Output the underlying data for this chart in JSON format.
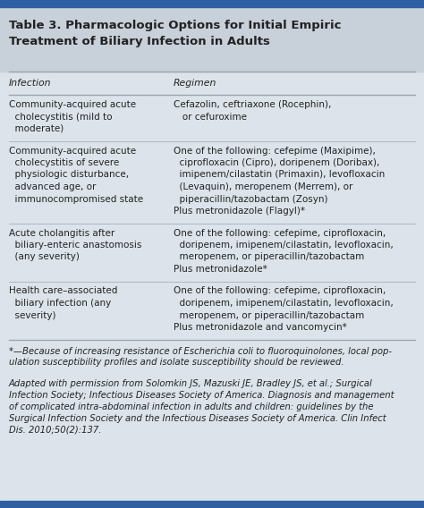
{
  "title_line1": "Table 3. Pharmacologic Options for Initial Empiric",
  "title_line2": "Treatment of Biliary Infection in Adults",
  "col_headers": [
    "Infection",
    "Regimen"
  ],
  "top_bar_color": "#2e5fa3",
  "title_bg_color": "#c8d0da",
  "body_bg_color": "#dce3ea",
  "line_color": "#9aa5b0",
  "text_color": "#222222",
  "rows": [
    {
      "infection": [
        "Community-acquired acute",
        "  cholecystitis (mild to",
        "  moderate)"
      ],
      "regimen": [
        "Cefazolin, ceftriaxone (Rocephin),",
        "   or cefuroxime"
      ]
    },
    {
      "infection": [
        "Community-acquired acute",
        "  cholecystitis of severe",
        "  physiologic disturbance,",
        "  advanced age, or",
        "  immunocompromised state"
      ],
      "regimen": [
        "One of the following: cefepime (Maxipime),",
        "  ciprofloxacin (Cipro), doripenem (Doribax),",
        "  imipenem/cilastatin (Primaxin), levofloxacin",
        "  (Levaquin), meropenem (Merrem), or",
        "  piperacillin/tazobactam (Zosyn)",
        "Plus metronidazole (Flagyl)*"
      ]
    },
    {
      "infection": [
        "Acute cholangitis after",
        "  biliary-enteric anastomosis",
        "  (any severity)"
      ],
      "regimen": [
        "One of the following: cefepime, ciprofloxacin,",
        "  doripenem, imipenem/cilastatin, levofloxacin,",
        "  meropenem, or piperacillin/tazobactam",
        "Plus metronidazole*"
      ]
    },
    {
      "infection": [
        "Health care–associated",
        "  biliary infection (any",
        "  severity)"
      ],
      "regimen": [
        "One of the following: cefepime, ciprofloxacin,",
        "  doripenem, imipenem/cilastatin, levofloxacin,",
        "  meropenem, or piperacillin/tazobactam",
        "Plus metronidazole and vancomycin*"
      ]
    }
  ],
  "footnote1_parts": [
    {
      "text": "*—Because of increasing resistance of ",
      "italic": true,
      "bold": false
    },
    {
      "text": "Escherichia coli",
      "italic": true,
      "bold": false
    },
    {
      "text": " to fluoroquinolones, local pop-\nulation susceptibility profiles and isolate susceptibility should be reviewed.",
      "italic": true,
      "bold": false
    }
  ],
  "footnote1": "*—Because of increasing resistance of Escherichia coli to fluoroquinolones, local pop-\nulation susceptibility profiles and isolate susceptibility should be reviewed.",
  "footnote2": "Adapted with permission from Solomkin JS, Mazuski JE, Bradley JS, et al.; Surgical\nInfection Society; Infectious Diseases Society of America. Diagnosis and management\nof complicated intra-abdominal infection in adults and children: guidelines by the\nSurgical Infection Society and the Infectious Diseases Society of America. Clin Infect\nDis. 2010;50(2):137.",
  "font_size": 7.5,
  "title_font_size": 9.5,
  "header_font_size": 7.8,
  "col_split": 0.405
}
